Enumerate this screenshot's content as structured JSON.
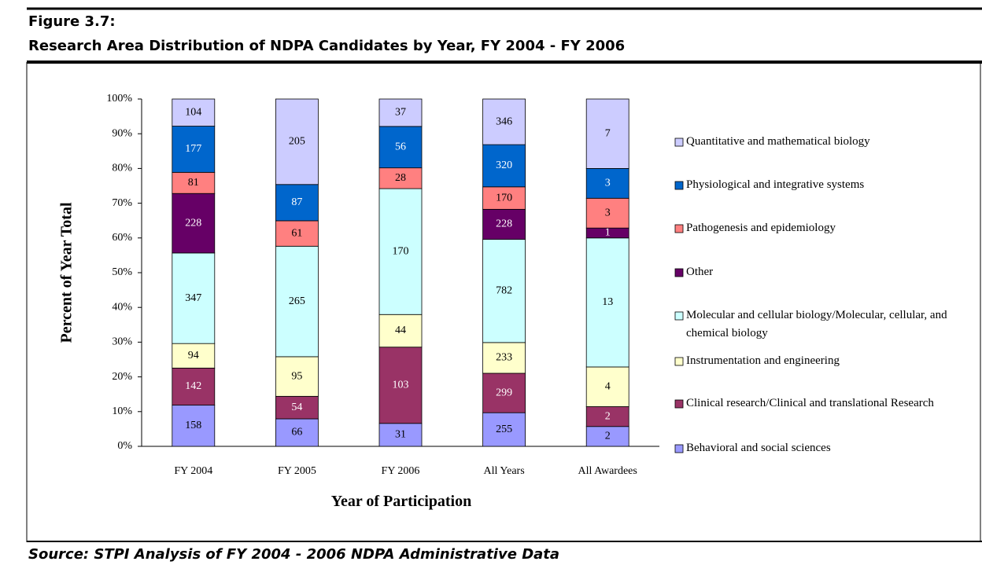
{
  "figure_label": "Figure 3.7:",
  "source": "Source: STPI Analysis of FY 2004 - 2006 NDPA Administrative Data",
  "chart_data": {
    "type": "bar",
    "stacking": "percent",
    "title": "Research Area Distribution of NDPA Candidates by Year, FY 2004 - FY 2006",
    "x_label": "Year of Participation",
    "y_label": "Percent of Year Total",
    "categories": [
      "FY 2004",
      "FY 2005",
      "FY 2006",
      "All Years",
      "All Awardees"
    ],
    "ylim": [
      0,
      100
    ],
    "yticks": [
      {
        "value": 0,
        "label": "0%"
      },
      {
        "value": 10,
        "label": "10%"
      },
      {
        "value": 20,
        "label": "20%"
      },
      {
        "value": 30,
        "label": "30%"
      },
      {
        "value": 40,
        "label": "40%"
      },
      {
        "value": 50,
        "label": "50%"
      },
      {
        "value": 60,
        "label": "60%"
      },
      {
        "value": 70,
        "label": "70%"
      },
      {
        "value": 80,
        "label": "80%"
      },
      {
        "value": 90,
        "label": "90%"
      },
      {
        "value": 100,
        "label": "100%"
      }
    ],
    "series": [
      {
        "name": "Behavioral and social sciences",
        "color": "#9999ff",
        "values": [
          158,
          66,
          31,
          255,
          2
        ]
      },
      {
        "name": "Clinical research/Clinical and translational Research",
        "color": "#993366",
        "values": [
          142,
          54,
          103,
          299,
          2
        ]
      },
      {
        "name": "Instrumentation and engineering",
        "color": "#ffffcc",
        "values": [
          94,
          95,
          44,
          233,
          4
        ]
      },
      {
        "name": "Molecular and cellular biology/Molecular, cellular, and chemical biology",
        "color": "#ccffff",
        "values": [
          347,
          265,
          170,
          782,
          13
        ]
      },
      {
        "name": "Other",
        "color": "#660066",
        "values": [
          228,
          null,
          null,
          228,
          1
        ]
      },
      {
        "name": "Pathogenesis and epidemiology",
        "color": "#ff8080",
        "values": [
          81,
          61,
          28,
          170,
          3
        ]
      },
      {
        "name": "Physiological and integrative systems",
        "color": "#0066cc",
        "values": [
          177,
          87,
          56,
          320,
          3
        ]
      },
      {
        "name": "Quantitative and mathematical biology",
        "color": "#ccccff",
        "values": [
          104,
          205,
          37,
          346,
          7
        ]
      }
    ]
  }
}
